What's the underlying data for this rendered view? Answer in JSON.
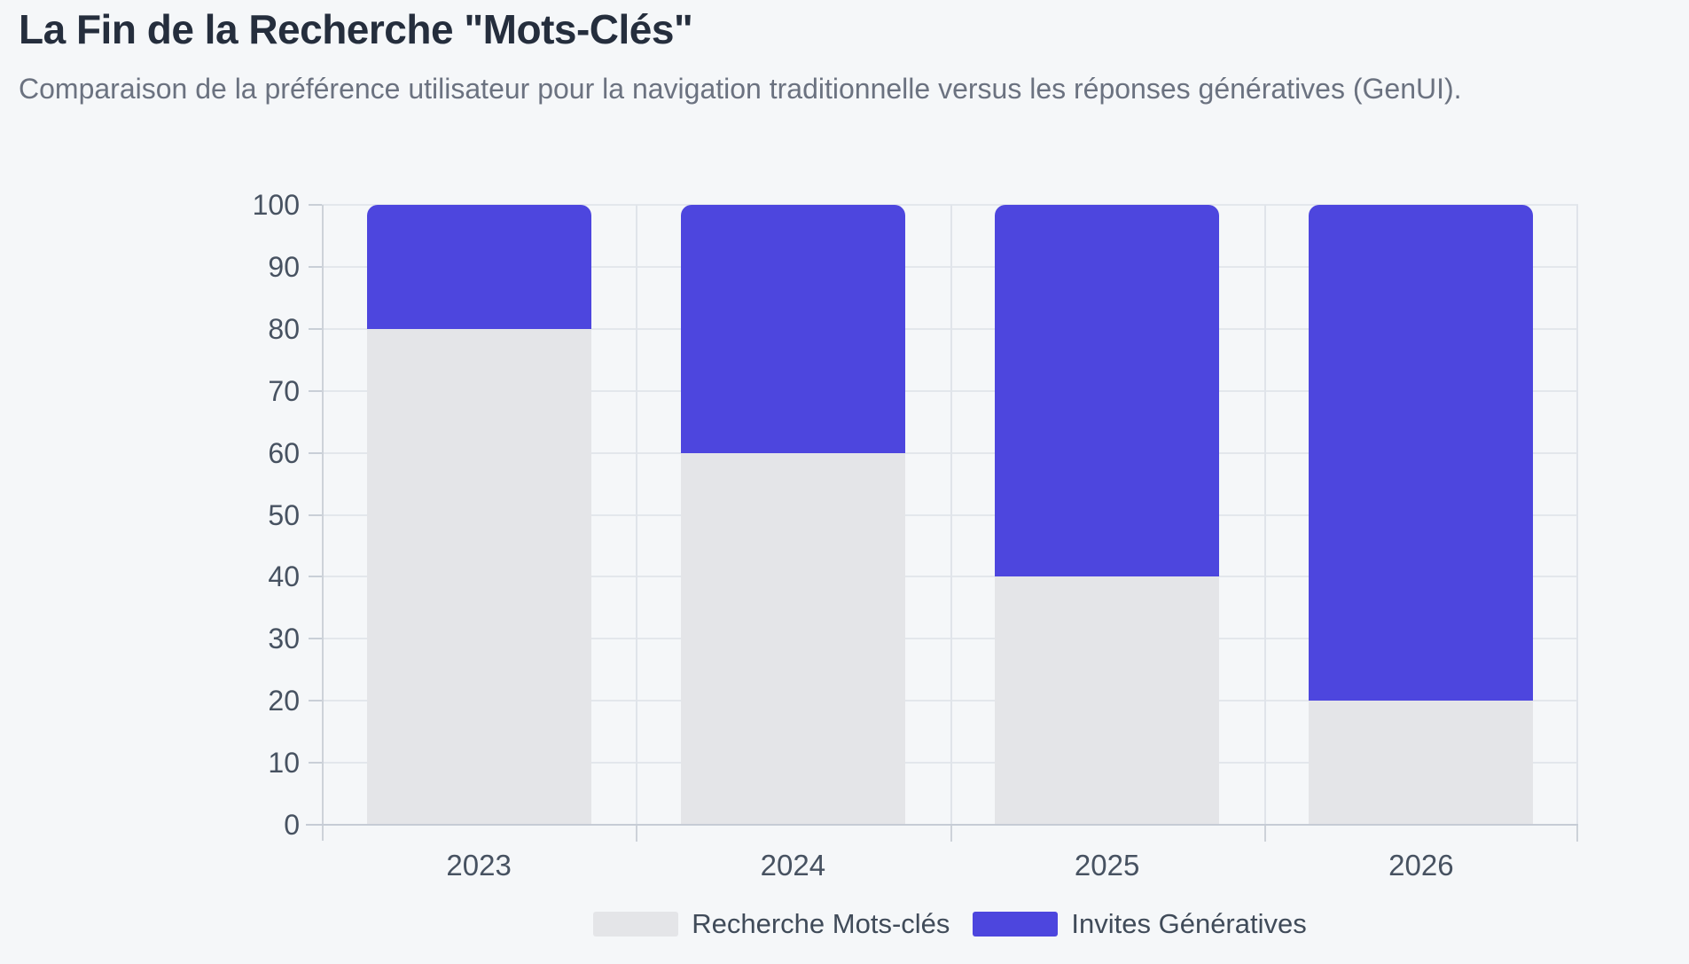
{
  "header": {
    "title": "La Fin de la Recherche \"Mots-Clés\"",
    "subtitle": "Comparaison de la préférence utilisateur pour la navigation traditionnelle versus les réponses génératives (GenUI)."
  },
  "chart_data": {
    "type": "bar",
    "stacked": true,
    "title": "La Fin de la Recherche \"Mots-Clés\"",
    "subtitle": "Comparaison de la préférence utilisateur pour la navigation traditionnelle versus les réponses génératives (GenUI).",
    "categories": [
      "2023",
      "2024",
      "2025",
      "2026"
    ],
    "series": [
      {
        "name": "Recherche Mots-clés",
        "color": "#e4e5e8",
        "values": [
          80,
          60,
          40,
          20
        ]
      },
      {
        "name": "Invites Génératives",
        "color": "#4d46de",
        "values": [
          20,
          40,
          60,
          80
        ]
      }
    ],
    "xlabel": "",
    "ylabel": "",
    "ylim": [
      0,
      100
    ],
    "yticks": [
      0,
      10,
      20,
      30,
      40,
      50,
      60,
      70,
      80,
      90,
      100
    ],
    "grid": true,
    "legend_position": "bottom"
  },
  "colors": {
    "accent_blue": "#4d46de",
    "neutral_gray_bar": "#e4e5e8",
    "background": "#f5f7f9"
  }
}
